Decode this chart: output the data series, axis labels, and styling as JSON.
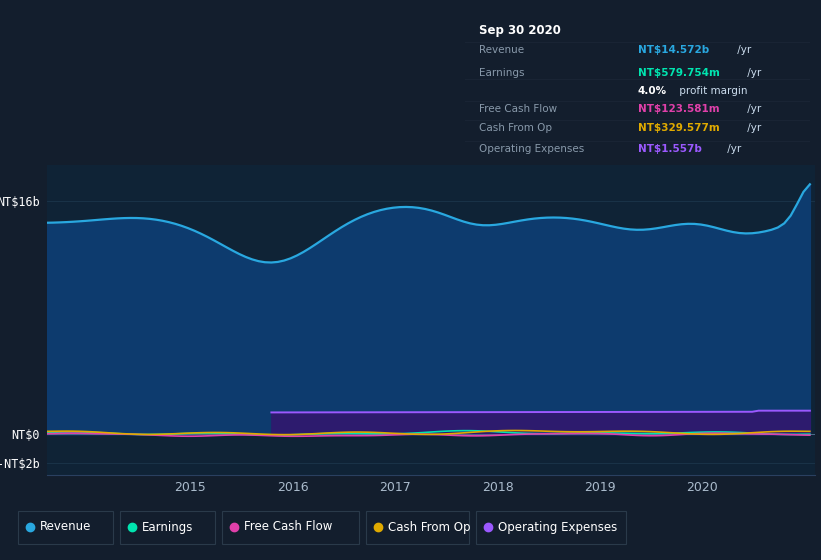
{
  "bg_color": "#131e2d",
  "plot_bg_color": "#0f2336",
  "area_revenue_color": "#0d3b6e",
  "area_opex_color": "#2d1b6e",
  "grid_color": "#1e3a50",
  "yticks_labels": [
    "NT$16b",
    "NT$0",
    "-NT$2b"
  ],
  "ytick_vals": [
    16000000000,
    0,
    -2000000000
  ],
  "ylim": [
    -2800000000,
    18500000000
  ],
  "xlim_start": 2013.6,
  "xlim_end": 2021.1,
  "xtick_years": [
    2015,
    2016,
    2017,
    2018,
    2019,
    2020
  ],
  "series_colors": {
    "Revenue": "#29a8e0",
    "Earnings": "#00e5b0",
    "Free Cash Flow": "#e040aa",
    "Cash From Op": "#e0aa00",
    "Operating Expenses": "#9b59ff"
  },
  "tooltip_bg": "#070d14",
  "tooltip_border": "#1a2a3a",
  "tooltip_title": "Sep 30 2020",
  "tooltip_label_color": "#8899aa",
  "tooltip_white": "#ccddee",
  "legend_items": [
    "Revenue",
    "Earnings",
    "Free Cash Flow",
    "Cash From Op",
    "Operating Expenses"
  ],
  "legend_border_color": "#2a3a4a"
}
